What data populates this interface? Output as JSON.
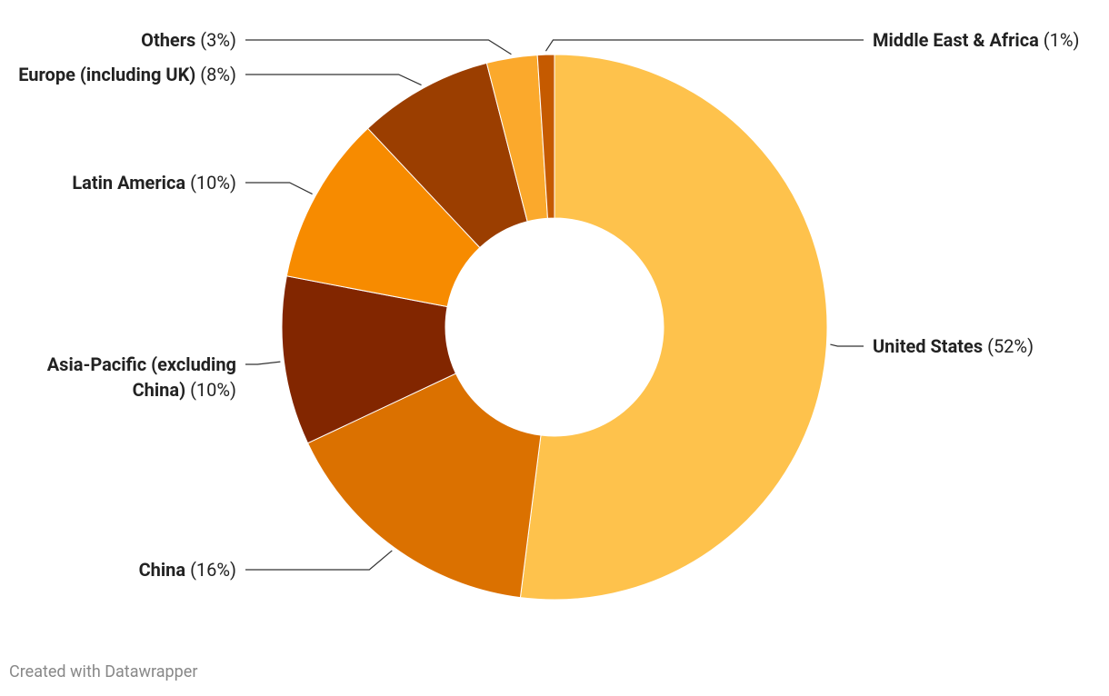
{
  "chart_data": {
    "type": "donut",
    "categories": [
      "United States",
      "China",
      "Asia-Pacific (excluding China)",
      "Latin America",
      "Europe (including UK)",
      "Others",
      "Middle East & Africa"
    ],
    "values": [
      52,
      16,
      10,
      10,
      8,
      3,
      1
    ],
    "value_labels": [
      "(52%)",
      "(16%)",
      "(10%)",
      "(10%)",
      "(8%)",
      "(3%)",
      "(1%)"
    ],
    "colors": [
      "#fec24c",
      "#db7100",
      "#822600",
      "#f78b00",
      "#9b3e00",
      "#fba92c",
      "#c55a00"
    ],
    "footer": "Created with Datawrapper"
  }
}
